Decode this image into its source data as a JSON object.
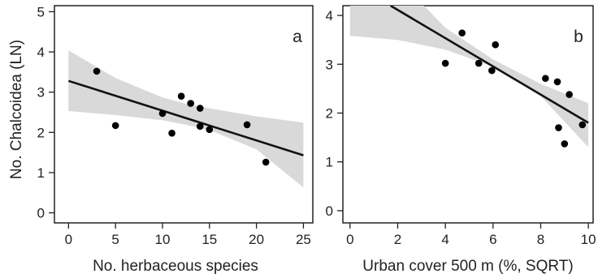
{
  "figure": {
    "ylabel": "No. Chalcoidea (LN)"
  },
  "chart_data": [
    {
      "type": "scatter",
      "panel_label": "a",
      "xlabel": "No. herbaceous species",
      "ylabel": "No. Chalcoidea (LN)",
      "xlim": [
        -1.5,
        26
      ],
      "ylim": [
        -0.25,
        5.15
      ],
      "xticks": [
        0,
        5,
        10,
        15,
        20,
        25
      ],
      "yticks": [
        0,
        1,
        2,
        3,
        4,
        5
      ],
      "grid": false,
      "points": [
        {
          "x": 3,
          "y": 3.52
        },
        {
          "x": 5,
          "y": 2.17
        },
        {
          "x": 10,
          "y": 2.47
        },
        {
          "x": 11,
          "y": 1.98
        },
        {
          "x": 12,
          "y": 2.9
        },
        {
          "x": 13,
          "y": 2.72
        },
        {
          "x": 14,
          "y": 2.6
        },
        {
          "x": 14,
          "y": 2.15
        },
        {
          "x": 15,
          "y": 2.07
        },
        {
          "x": 19,
          "y": 2.19
        },
        {
          "x": 21,
          "y": 1.26
        }
      ],
      "fit_line": [
        {
          "x": 0,
          "y": 3.28
        },
        {
          "x": 25,
          "y": 1.43
        }
      ],
      "confidence_band": {
        "x": [
          0,
          5,
          10,
          12.5,
          15,
          20,
          25
        ],
        "lower": [
          2.53,
          2.43,
          2.3,
          2.19,
          2.06,
          1.58,
          0.63
        ],
        "upper": [
          4.04,
          3.35,
          2.87,
          2.71,
          2.6,
          2.4,
          2.24
        ]
      }
    },
    {
      "type": "scatter",
      "panel_label": "b",
      "xlabel": "Urban cover 500 m (%, SQRT)",
      "ylabel": "",
      "xlim": [
        -0.3,
        10.2
      ],
      "ylim": [
        -0.25,
        4.2
      ],
      "xticks": [
        0,
        2,
        4,
        6,
        8,
        10
      ],
      "yticks": [
        0,
        1,
        2,
        3,
        4
      ],
      "grid": false,
      "points": [
        {
          "x": 4.0,
          "y": 3.02
        },
        {
          "x": 4.7,
          "y": 3.64
        },
        {
          "x": 5.4,
          "y": 3.02
        },
        {
          "x": 5.95,
          "y": 2.87
        },
        {
          "x": 6.1,
          "y": 3.4
        },
        {
          "x": 8.2,
          "y": 2.71
        },
        {
          "x": 8.7,
          "y": 2.64
        },
        {
          "x": 8.75,
          "y": 1.7
        },
        {
          "x": 9.0,
          "y": 1.37
        },
        {
          "x": 9.2,
          "y": 2.38
        },
        {
          "x": 9.75,
          "y": 1.76
        }
      ],
      "fit_line": [
        {
          "x": 1.7,
          "y": 4.2
        },
        {
          "x": 10,
          "y": 1.8
        }
      ],
      "confidence_band": {
        "x": [
          0,
          2,
          4,
          6,
          8,
          10
        ],
        "lower": [
          3.58,
          3.5,
          3.3,
          2.95,
          2.35,
          1.3
        ],
        "upper": [
          5.6,
          4.75,
          3.75,
          3.1,
          2.6,
          2.2
        ]
      }
    }
  ]
}
